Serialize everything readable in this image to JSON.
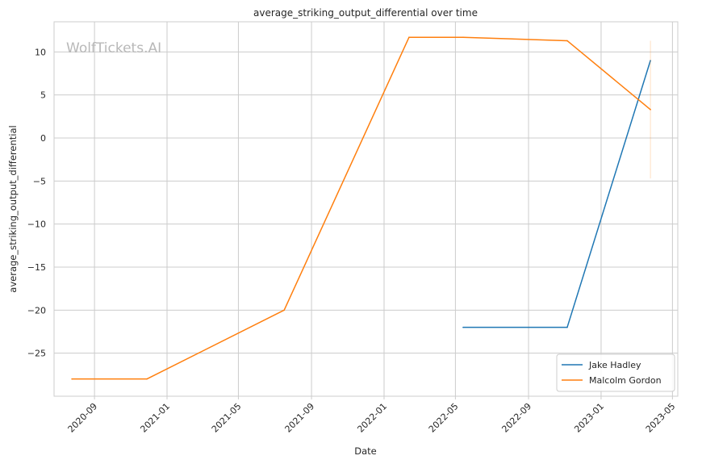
{
  "watermark": "WolfTickets.AI",
  "chart_data": {
    "type": "line",
    "title": "average_striking_output_differential over time",
    "xlabel": "Date",
    "ylabel": "average_striking_output_differential",
    "x_ticks": [
      "2020-09",
      "2021-01",
      "2021-05",
      "2021-09",
      "2022-01",
      "2022-05",
      "2022-09",
      "2023-01",
      "2023-05"
    ],
    "y_ticks": [
      10,
      5,
      0,
      -5,
      -10,
      -15,
      -20,
      -25
    ],
    "xlim": [
      "2020-06-25",
      "2023-05-10"
    ],
    "ylim": [
      -30,
      13.5
    ],
    "grid": true,
    "legend_position": "bottom-right",
    "series": [
      {
        "name": "Jake Hadley",
        "color": "#1f77b4",
        "points": [
          {
            "x": "2022-05-14",
            "y": -22
          },
          {
            "x": "2022-11-05",
            "y": -22
          },
          {
            "x": "2023-03-25",
            "y": 9
          }
        ]
      },
      {
        "name": "Malcolm Gordon",
        "color": "#ff7f0e",
        "points": [
          {
            "x": "2020-07-25",
            "y": -28
          },
          {
            "x": "2020-11-28",
            "y": -28
          },
          {
            "x": "2021-07-17",
            "y": -20
          },
          {
            "x": "2022-02-12",
            "y": 11.7
          },
          {
            "x": "2022-05-14",
            "y": 11.7
          },
          {
            "x": "2022-11-05",
            "y": 11.3
          },
          {
            "x": "2023-03-25",
            "y": 3.3
          }
        ],
        "error_band": {
          "x": "2023-03-25",
          "low": -4.7,
          "high": 11.3
        }
      }
    ]
  }
}
